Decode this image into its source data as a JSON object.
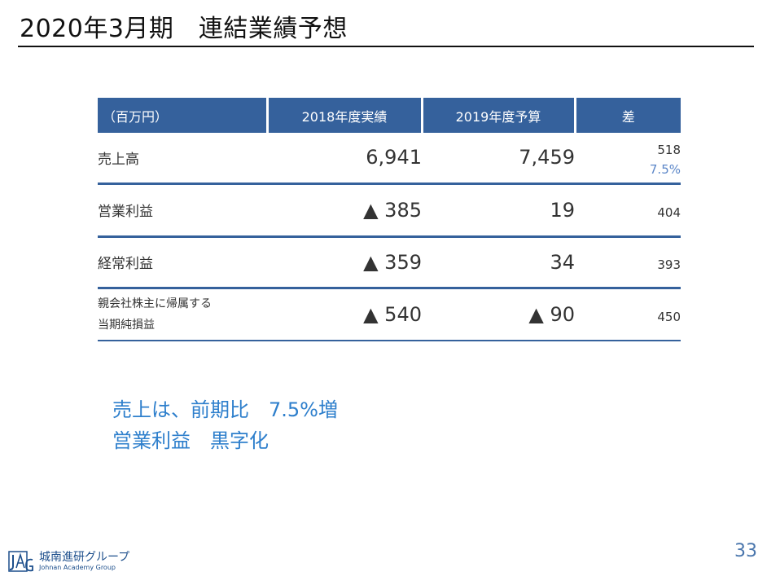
{
  "slide": {
    "title": "2020年3月期　連結業績予想",
    "page_number": "33"
  },
  "table": {
    "headers": [
      "（百万円）",
      "2018年度実績",
      "2019年度予算",
      "差"
    ],
    "rows": [
      {
        "label": "売上高",
        "actual_2018": "6,941",
        "budget_2019": "7,459",
        "diff": "518",
        "diff_pct": "7.5%"
      },
      {
        "label": "営業利益",
        "actual_2018": "▲ 385",
        "budget_2019": "19",
        "diff": "404"
      },
      {
        "label": "経常利益",
        "actual_2018": "▲ 359",
        "budget_2019": "34",
        "diff": "393"
      },
      {
        "label_line1": "親会社株主に帰属する",
        "label_line2": "当期純損益",
        "actual_2018": "▲ 540",
        "budget_2019": "▲ 90",
        "diff": "450"
      }
    ]
  },
  "summary": {
    "line1": "売上は、前期比　7.5%増",
    "line2": "営業利益　黒字化"
  },
  "logo": {
    "name": "城南進研グループ",
    "subtitle": "Johnan Academy Group"
  },
  "colors": {
    "header_blue": "#35619c",
    "summary_blue": "#2e7fcc",
    "page_number_blue": "#4a76ad"
  }
}
